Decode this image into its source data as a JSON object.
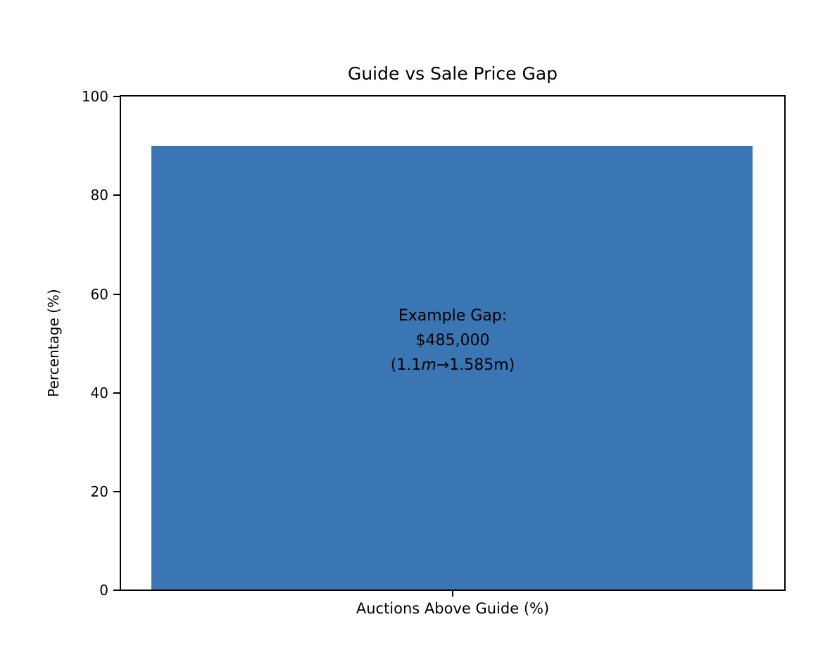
{
  "figure": {
    "background_color": "#ffffff",
    "text_color": "#000000"
  },
  "chart_data": {
    "type": "bar",
    "title": "Guide vs Sale Price Gap",
    "categories": [
      "Auctions Above Guide (%)"
    ],
    "values": [
      90
    ],
    "xlabel": "Auctions Above Guide (%)",
    "ylabel": "Percentage (%)",
    "ylim": [
      0,
      100
    ],
    "yticks": [
      0,
      20,
      40,
      60,
      80,
      100
    ],
    "ytick_labels_top_to_bottom": [
      "100",
      "80",
      "60",
      "40",
      "20",
      "0"
    ],
    "grid": false,
    "legend": "none",
    "bar_color": "#3b76b4",
    "annotation": {
      "line1": "Example Gap:",
      "line2": "$485,000",
      "line3_prefix": "(1.1",
      "line3_italic": "m",
      "line3_suffix": "→1.585m)",
      "full_text": "Example Gap:\n$485,000\n(1.1m→1.585m)"
    }
  }
}
